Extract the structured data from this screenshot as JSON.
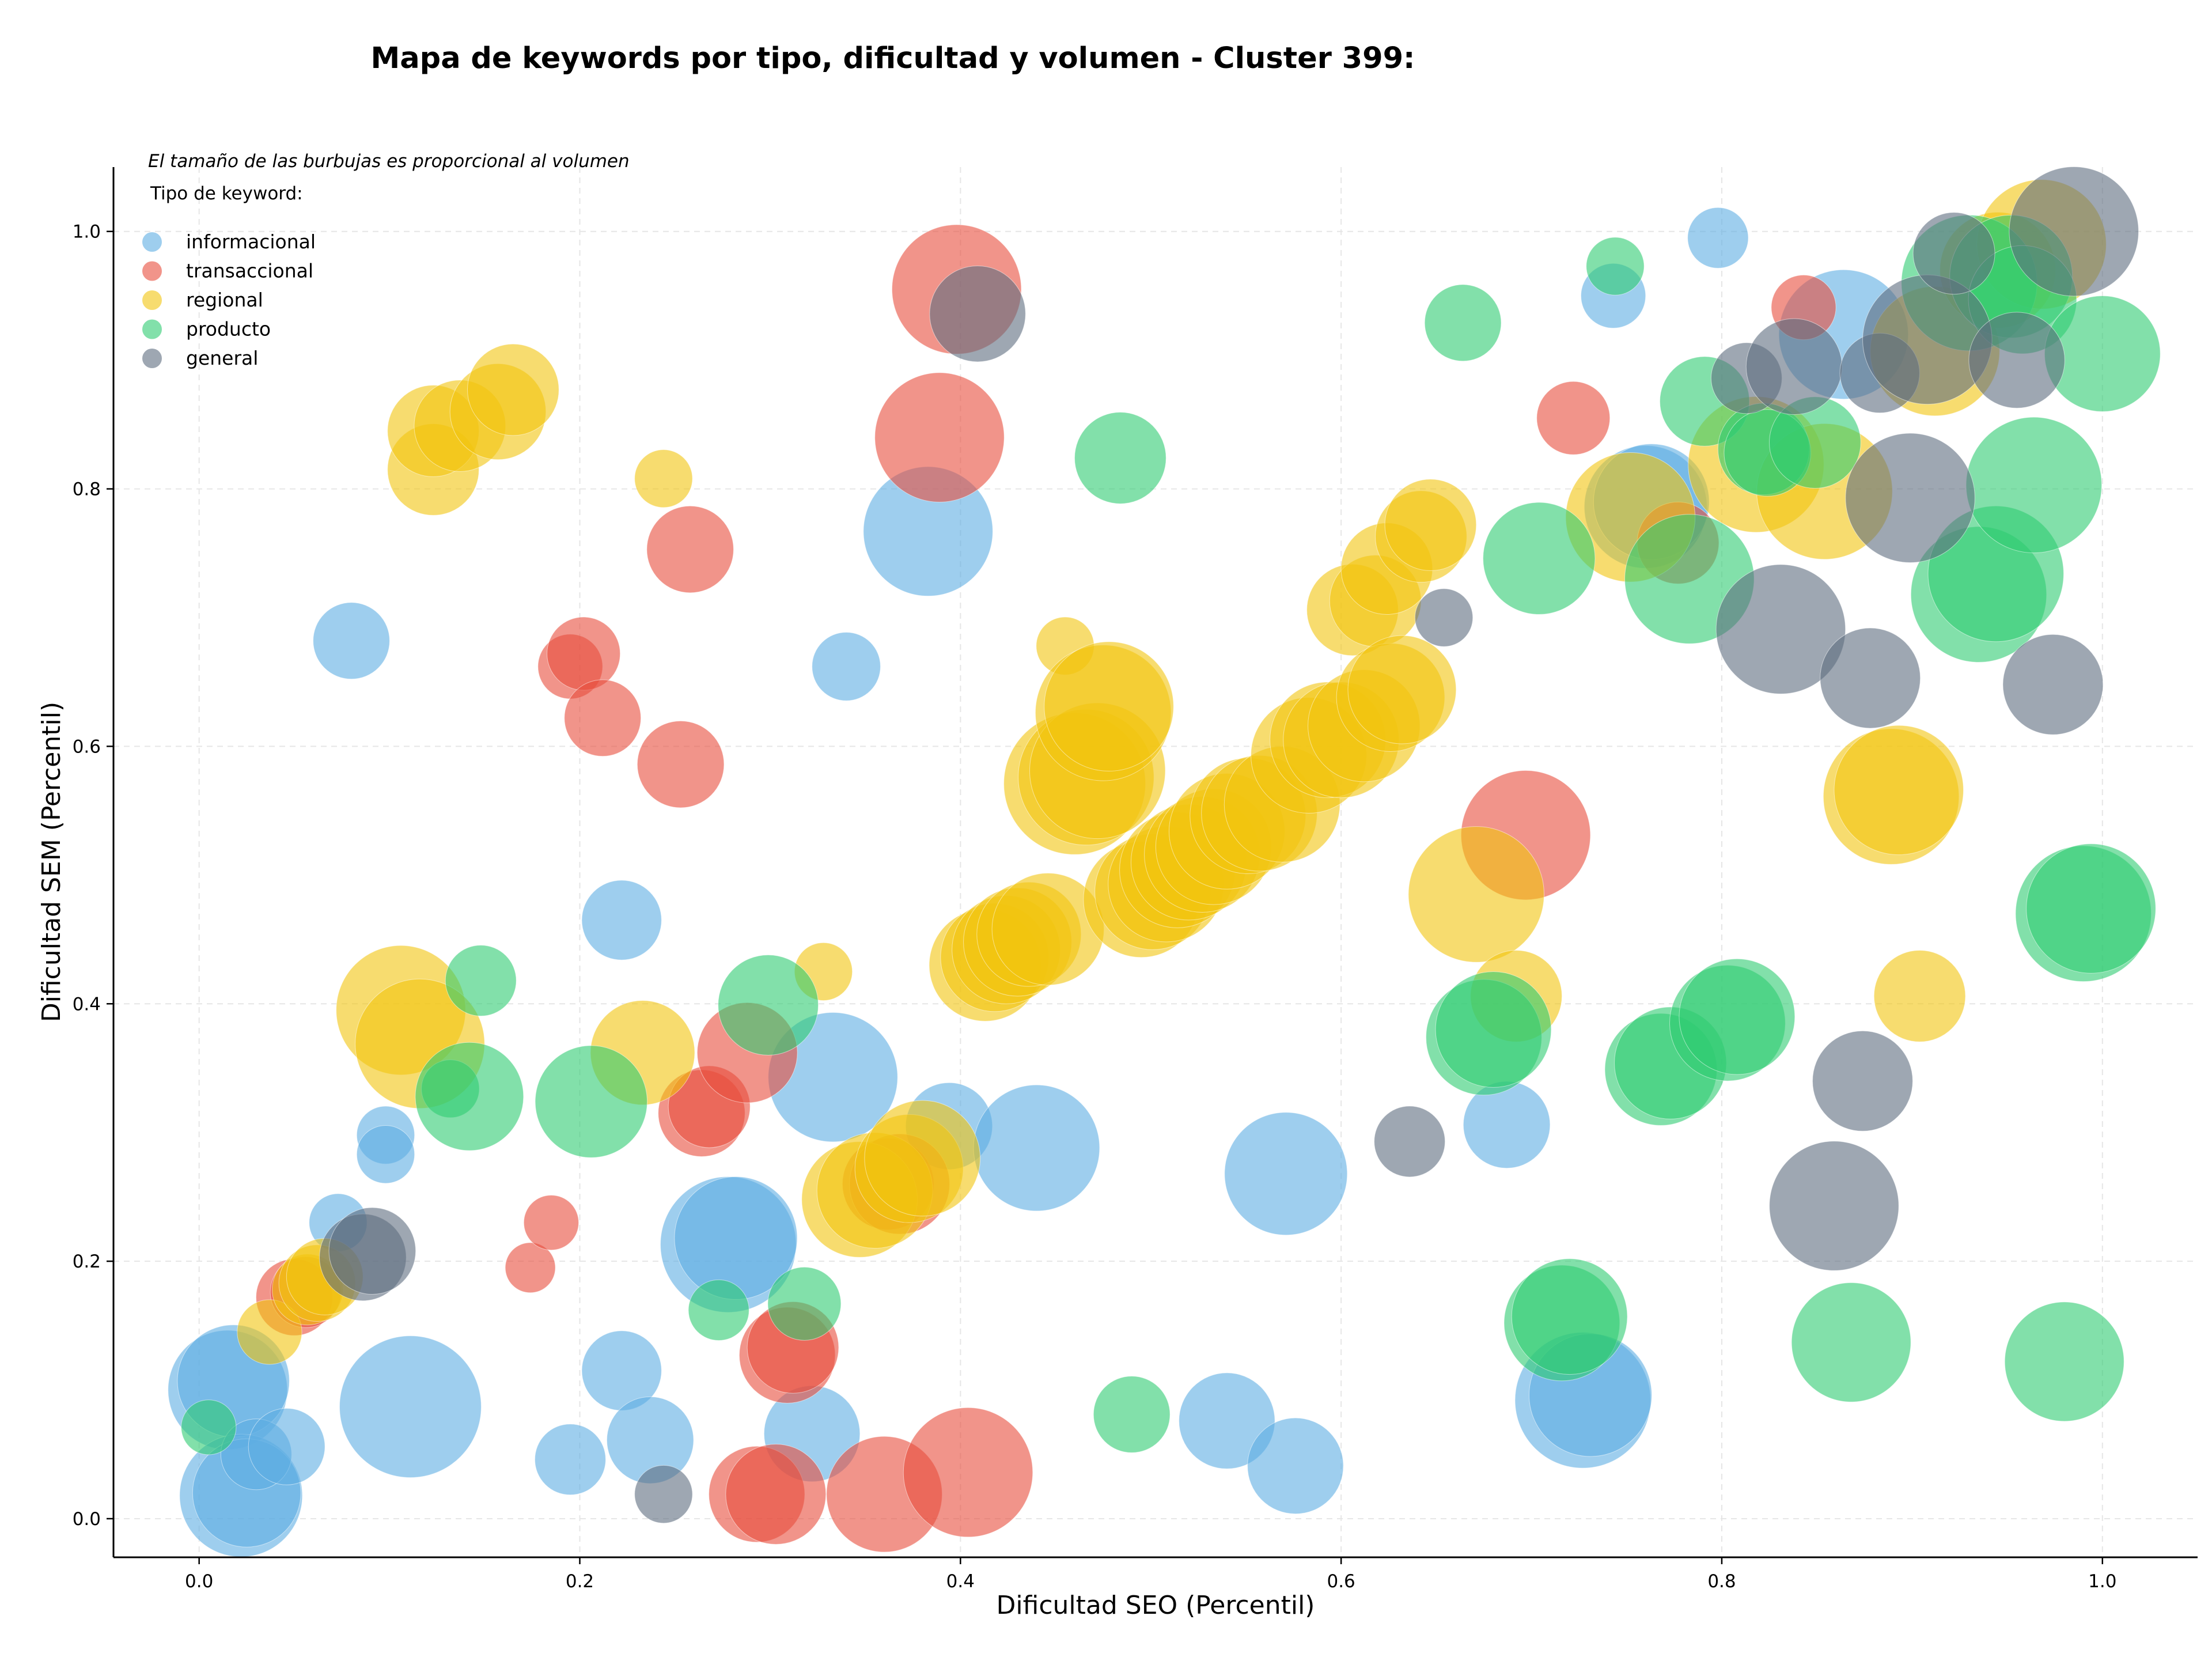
{
  "chart_data": {
    "type": "scatter",
    "title": "Mapa de keywords por tipo, dificultad y volumen - Cluster 399:",
    "xlabel": "Dificultad SEO (Percentil)",
    "ylabel": "Dificultad SEM (Percentil)",
    "xlim": [
      -0.045,
      1.05
    ],
    "ylim": [
      -0.03,
      1.05
    ],
    "xticks": [
      0.0,
      0.2,
      0.4,
      0.6,
      0.8,
      1.0
    ],
    "yticks": [
      0.0,
      0.2,
      0.4,
      0.6,
      0.8,
      1.0
    ],
    "grid": true,
    "note": "El tamaño de las burbujas es proporcional al volumen",
    "legend": {
      "title": "Tipo de keyword:",
      "placement": "top-left",
      "entries": [
        {
          "name": "informacional",
          "color": "#5DADE2"
        },
        {
          "name": "transaccional",
          "color": "#E74C3C"
        },
        {
          "name": "regional",
          "color": "#F1C40F"
        },
        {
          "name": "producto",
          "color": "#2ECC71"
        },
        {
          "name": "general",
          "color": "#5D6D7E"
        }
      ]
    },
    "series": [
      {
        "name": "informacional",
        "color": "#5DADE2",
        "points": [
          [
            0.015,
            0.1,
            850
          ],
          [
            0.018,
            0.107,
            750
          ],
          [
            0.022,
            0.018,
            900
          ],
          [
            0.025,
            0.02,
            700
          ],
          [
            0.03,
            0.05,
            300
          ],
          [
            0.046,
            0.056,
            350
          ],
          [
            0.073,
            0.23,
            200
          ],
          [
            0.08,
            0.682,
            350
          ],
          [
            0.098,
            0.298,
            200
          ],
          [
            0.098,
            0.283,
            200
          ],
          [
            0.111,
            0.087,
            1200
          ],
          [
            0.195,
            0.046,
            300
          ],
          [
            0.222,
            0.115,
            380
          ],
          [
            0.222,
            0.465,
            380
          ],
          [
            0.237,
            0.061,
            450
          ],
          [
            0.278,
            0.213,
            1100
          ],
          [
            0.282,
            0.218,
            900
          ],
          [
            0.322,
            0.066,
            550
          ],
          [
            0.333,
            0.343,
            1000
          ],
          [
            0.34,
            0.662,
            280
          ],
          [
            0.383,
            0.767,
            1000
          ],
          [
            0.394,
            0.305,
            450
          ],
          [
            0.44,
            0.288,
            950
          ],
          [
            0.54,
            0.076,
            550
          ],
          [
            0.571,
            0.268,
            900
          ],
          [
            0.576,
            0.041,
            550
          ],
          [
            0.687,
            0.306,
            450
          ],
          [
            0.727,
            0.092,
            1100
          ],
          [
            0.731,
            0.096,
            900
          ],
          [
            0.743,
            0.95,
            250
          ],
          [
            0.76,
            0.786,
            900
          ],
          [
            0.763,
            0.79,
            800
          ],
          [
            0.798,
            0.995,
            220
          ],
          [
            0.864,
            0.92,
            1000
          ]
        ]
      },
      {
        "name": "transaccional",
        "color": "#E74C3C",
        "points": [
          [
            0.05,
            0.172,
            350
          ],
          [
            0.056,
            0.176,
            300
          ],
          [
            0.174,
            0.195,
            150
          ],
          [
            0.185,
            0.23,
            180
          ],
          [
            0.195,
            0.662,
            250
          ],
          [
            0.202,
            0.672,
            320
          ],
          [
            0.212,
            0.622,
            350
          ],
          [
            0.253,
            0.586,
            450
          ],
          [
            0.258,
            0.753,
            450
          ],
          [
            0.264,
            0.315,
            450
          ],
          [
            0.268,
            0.32,
            400
          ],
          [
            0.288,
            0.362,
            600
          ],
          [
            0.293,
            0.019,
            550
          ],
          [
            0.303,
            0.019,
            600
          ],
          [
            0.309,
            0.127,
            550
          ],
          [
            0.312,
            0.133,
            500
          ],
          [
            0.36,
            0.019,
            800
          ],
          [
            0.362,
            0.26,
            500
          ],
          [
            0.368,
            0.26,
            600
          ],
          [
            0.398,
            0.955,
            1000
          ],
          [
            0.389,
            0.84,
            1000
          ],
          [
            0.404,
            0.036,
            1000
          ],
          [
            0.697,
            0.531,
            1000
          ],
          [
            0.722,
            0.855,
            320
          ],
          [
            0.777,
            0.758,
            400
          ],
          [
            0.843,
            0.941,
            250
          ]
        ]
      },
      {
        "name": "regional",
        "color": "#F1C40F",
        "points": [
          [
            0.037,
            0.145,
            250
          ],
          [
            0.057,
            0.178,
            300
          ],
          [
            0.062,
            0.183,
            350
          ],
          [
            0.066,
            0.188,
            350
          ],
          [
            0.106,
            0.395,
            1000
          ],
          [
            0.116,
            0.369,
            1000
          ],
          [
            0.123,
            0.815,
            500
          ],
          [
            0.123,
            0.845,
            500
          ],
          [
            0.137,
            0.849,
            500
          ],
          [
            0.157,
            0.86,
            550
          ],
          [
            0.165,
            0.877,
            500
          ],
          [
            0.233,
            0.362,
            650
          ],
          [
            0.244,
            0.808,
            200
          ],
          [
            0.328,
            0.425,
            200
          ],
          [
            0.347,
            0.248,
            800
          ],
          [
            0.355,
            0.255,
            800
          ],
          [
            0.373,
            0.272,
            700
          ],
          [
            0.38,
            0.28,
            800
          ],
          [
            0.413,
            0.43,
            750
          ],
          [
            0.418,
            0.436,
            700
          ],
          [
            0.424,
            0.442,
            700
          ],
          [
            0.43,
            0.448,
            700
          ],
          [
            0.436,
            0.454,
            650
          ],
          [
            0.446,
            0.458,
            750
          ],
          [
            0.455,
            0.678,
            200
          ],
          [
            0.46,
            0.571,
            1200
          ],
          [
            0.466,
            0.576,
            1100
          ],
          [
            0.472,
            0.581,
            1100
          ],
          [
            0.475,
            0.626,
            1100
          ],
          [
            0.478,
            0.631,
            1000
          ],
          [
            0.495,
            0.481,
            800
          ],
          [
            0.501,
            0.487,
            800
          ],
          [
            0.508,
            0.493,
            800
          ],
          [
            0.514,
            0.504,
            800
          ],
          [
            0.52,
            0.51,
            800
          ],
          [
            0.527,
            0.516,
            800
          ],
          [
            0.533,
            0.522,
            800
          ],
          [
            0.54,
            0.534,
            800
          ],
          [
            0.551,
            0.546,
            800
          ],
          [
            0.557,
            0.548,
            800
          ],
          [
            0.569,
            0.555,
            800
          ],
          [
            0.583,
            0.593,
            800
          ],
          [
            0.593,
            0.605,
            800
          ],
          [
            0.6,
            0.605,
            800
          ],
          [
            0.606,
            0.706,
            500
          ],
          [
            0.612,
            0.616,
            750
          ],
          [
            0.618,
            0.713,
            500
          ],
          [
            0.626,
            0.638,
            700
          ],
          [
            0.624,
            0.738,
            500
          ],
          [
            0.632,
            0.644,
            700
          ],
          [
            0.642,
            0.763,
            500
          ],
          [
            0.647,
            0.772,
            500
          ],
          [
            0.671,
            0.485,
            1100
          ],
          [
            0.692,
            0.406,
            500
          ],
          [
            0.752,
            0.778,
            1000
          ],
          [
            0.818,
            0.819,
            1100
          ],
          [
            0.854,
            0.798,
            1100
          ],
          [
            0.889,
            0.561,
            1100
          ],
          [
            0.893,
            0.566,
            1000
          ],
          [
            0.904,
            0.406,
            500
          ],
          [
            0.912,
            0.907,
            1000
          ],
          [
            0.945,
            0.97,
            800
          ],
          [
            0.968,
            0.99,
            1000
          ]
        ]
      },
      {
        "name": "producto",
        "color": "#2ECC71",
        "points": [
          [
            0.005,
            0.071,
            180
          ],
          [
            0.132,
            0.334,
            200
          ],
          [
            0.142,
            0.328,
            700
          ],
          [
            0.148,
            0.418,
            300
          ],
          [
            0.206,
            0.324,
            750
          ],
          [
            0.273,
            0.162,
            220
          ],
          [
            0.299,
            0.399,
            600
          ],
          [
            0.318,
            0.167,
            320
          ],
          [
            0.484,
            0.824,
            500
          ],
          [
            0.49,
            0.081,
            350
          ],
          [
            0.664,
            0.929,
            350
          ],
          [
            0.675,
            0.374,
            800
          ],
          [
            0.68,
            0.38,
            800
          ],
          [
            0.704,
            0.746,
            750
          ],
          [
            0.716,
            0.152,
            800
          ],
          [
            0.72,
            0.157,
            800
          ],
          [
            0.744,
            0.973,
            200
          ],
          [
            0.768,
            0.349,
            750
          ],
          [
            0.773,
            0.354,
            750
          ],
          [
            0.783,
            0.73,
            1000
          ],
          [
            0.791,
            0.868,
            480
          ],
          [
            0.803,
            0.385,
            800
          ],
          [
            0.808,
            0.39,
            800
          ],
          [
            0.822,
            0.831,
            500
          ],
          [
            0.824,
            0.828,
            450
          ],
          [
            0.849,
            0.836,
            500
          ],
          [
            0.868,
            0.137,
            850
          ],
          [
            0.93,
            0.96,
            1100
          ],
          [
            0.935,
            0.718,
            1100
          ],
          [
            0.944,
            0.734,
            1100
          ],
          [
            0.952,
            0.965,
            900
          ],
          [
            0.958,
            0.947,
            700
          ],
          [
            0.964,
            0.803,
            1100
          ],
          [
            0.98,
            0.122,
            850
          ],
          [
            0.99,
            0.47,
            1100
          ],
          [
            0.994,
            0.474,
            1000
          ],
          [
            1.0,
            0.905,
            800
          ]
        ]
      },
      {
        "name": "general",
        "color": "#5D6D7E",
        "points": [
          [
            0.086,
            0.203,
            450
          ],
          [
            0.091,
            0.208,
            450
          ],
          [
            0.244,
            0.019,
            200
          ],
          [
            0.409,
            0.936,
            550
          ],
          [
            0.636,
            0.293,
            300
          ],
          [
            0.654,
            0.7,
            200
          ],
          [
            0.813,
            0.886,
            300
          ],
          [
            0.831,
            0.691,
            1000
          ],
          [
            0.838,
            0.895,
            550
          ],
          [
            0.859,
            0.243,
            1000
          ],
          [
            0.874,
            0.34,
            600
          ],
          [
            0.878,
            0.653,
            600
          ],
          [
            0.883,
            0.89,
            380
          ],
          [
            0.899,
            0.793,
            1000
          ],
          [
            0.908,
            0.916,
            1000
          ],
          [
            0.922,
            0.983,
            400
          ],
          [
            0.955,
            0.9,
            550
          ],
          [
            0.974,
            0.648,
            600
          ],
          [
            0.985,
            1.0,
            1000
          ]
        ]
      }
    ]
  }
}
